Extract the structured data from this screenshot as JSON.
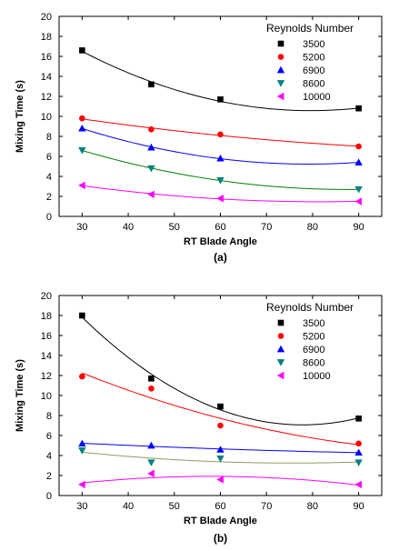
{
  "chart_data": [
    {
      "type": "scatter",
      "panel_label": "(a)",
      "xlabel": "RT Blade Angle",
      "ylabel": "Mixing Time (s)",
      "xlim": [
        25,
        95
      ],
      "ylim": [
        0,
        20
      ],
      "xticks": [
        30,
        40,
        50,
        60,
        70,
        80,
        90
      ],
      "yticks": [
        0,
        2,
        4,
        6,
        8,
        10,
        12,
        14,
        16,
        18,
        20
      ],
      "grid": false,
      "legend_title": "Reynolds Number",
      "legend_position": "top-right",
      "trend": "quadratic fit line per series",
      "series": [
        {
          "name": "3500",
          "marker": "square",
          "color": "#000000",
          "line_color": "#000000",
          "x": [
            30,
            45,
            60,
            90
          ],
          "y": [
            16.6,
            13.2,
            11.7,
            10.8
          ]
        },
        {
          "name": "5200",
          "marker": "circle",
          "color": "#ff0000",
          "line_color": "#ff0000",
          "x": [
            30,
            45,
            60,
            90
          ],
          "y": [
            9.8,
            8.7,
            8.2,
            7.0
          ]
        },
        {
          "name": "6900",
          "marker": "triangle-up",
          "color": "#0000ff",
          "line_color": "#0000ff",
          "x": [
            30,
            45,
            60,
            90
          ],
          "y": [
            8.8,
            6.9,
            5.8,
            5.4
          ]
        },
        {
          "name": "8600",
          "marker": "triangle-down",
          "color": "#008080",
          "line_color": "#008000",
          "x": [
            30,
            45,
            60,
            90
          ],
          "y": [
            6.6,
            4.8,
            3.6,
            2.7
          ]
        },
        {
          "name": "10000",
          "marker": "triangle-left",
          "color": "#ff00ff",
          "line_color": "#ff00ff",
          "x": [
            30,
            45,
            60,
            90
          ],
          "y": [
            3.1,
            2.2,
            1.8,
            1.5
          ]
        }
      ]
    },
    {
      "type": "scatter",
      "panel_label": "(b)",
      "xlabel": "RT Blade Angle",
      "ylabel": "Mixing Time (s)",
      "xlim": [
        25,
        95
      ],
      "ylim": [
        0,
        20
      ],
      "xticks": [
        30,
        40,
        50,
        60,
        70,
        80,
        90
      ],
      "yticks": [
        0,
        2,
        4,
        6,
        8,
        10,
        12,
        14,
        16,
        18,
        20
      ],
      "grid": false,
      "legend_title": "Reynolds Number",
      "legend_position": "top-right",
      "trend": "quadratic fit line per series",
      "series": [
        {
          "name": "3500",
          "marker": "square",
          "color": "#000000",
          "line_color": "#000000",
          "x": [
            30,
            45,
            60,
            90
          ],
          "y": [
            18.0,
            11.7,
            8.9,
            7.7
          ]
        },
        {
          "name": "5200",
          "marker": "circle",
          "color": "#ff0000",
          "line_color": "#ff0000",
          "x": [
            30,
            45,
            60,
            90
          ],
          "y": [
            11.9,
            10.7,
            7.0,
            5.2
          ]
        },
        {
          "name": "6900",
          "marker": "triangle-up",
          "color": "#0000ff",
          "line_color": "#0000ff",
          "x": [
            30,
            45,
            60,
            90
          ],
          "y": [
            5.2,
            5.0,
            4.6,
            4.3
          ]
        },
        {
          "name": "8600",
          "marker": "triangle-down",
          "color": "#008080",
          "line_color": "#999966",
          "x": [
            30,
            45,
            60,
            90
          ],
          "y": [
            4.5,
            3.3,
            3.7,
            3.3
          ]
        },
        {
          "name": "10000",
          "marker": "triangle-left",
          "color": "#ff00ff",
          "line_color": "#ff00ff",
          "x": [
            30,
            45,
            60,
            90
          ],
          "y": [
            1.1,
            2.2,
            1.6,
            1.1
          ]
        }
      ]
    }
  ]
}
